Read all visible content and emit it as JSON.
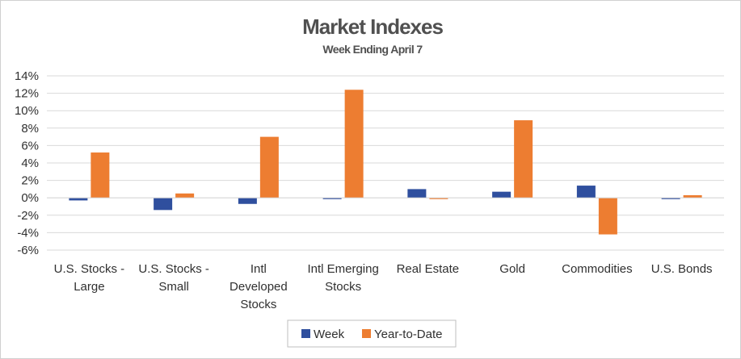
{
  "chart_data": {
    "type": "bar",
    "title": "Market Indexes",
    "subtitle": "Week Ending April 7",
    "categories": [
      [
        "U.S. Stocks -",
        "Large"
      ],
      [
        "U.S. Stocks -",
        "Small"
      ],
      [
        "Intl",
        "Developed",
        "Stocks"
      ],
      [
        "Intl Emerging",
        "Stocks"
      ],
      [
        "Real Estate"
      ],
      [
        "Gold"
      ],
      [
        "Commodities"
      ],
      [
        "U.S. Bonds"
      ]
    ],
    "series": [
      {
        "name": "Week",
        "color": "#2f4f9e",
        "values": [
          -0.3,
          -1.4,
          -0.7,
          -0.15,
          1.0,
          0.7,
          1.4,
          -0.15
        ]
      },
      {
        "name": "Year-to-Date",
        "color": "#ed7d31",
        "values": [
          5.2,
          0.5,
          7.0,
          12.4,
          -0.15,
          8.9,
          -4.2,
          0.3
        ]
      }
    ],
    "ylim": [
      -6,
      14
    ],
    "yticks": [
      "-6%",
      "-4%",
      "-2%",
      "0%",
      "2%",
      "4%",
      "6%",
      "8%",
      "10%",
      "12%",
      "14%"
    ],
    "ytick_values": [
      -6,
      -4,
      -2,
      0,
      2,
      4,
      6,
      8,
      10,
      12,
      14
    ],
    "grid": true,
    "legend": "bottom"
  }
}
